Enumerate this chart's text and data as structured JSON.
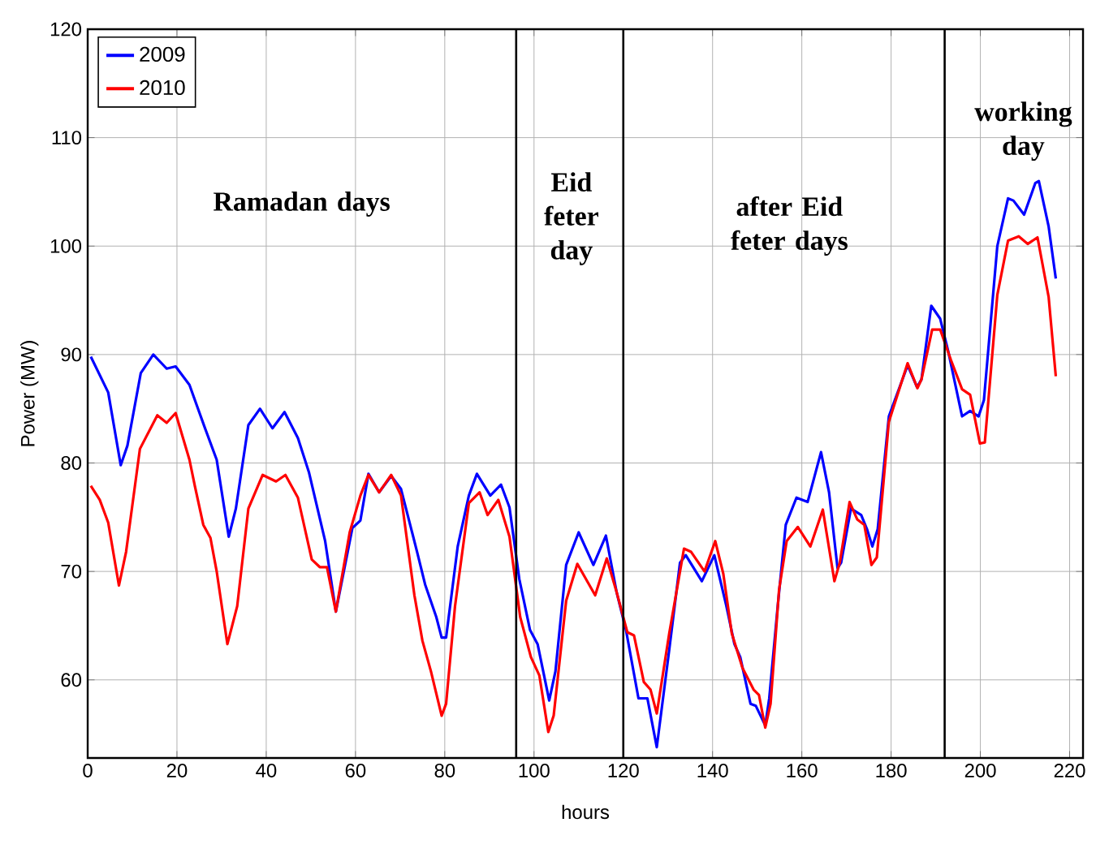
{
  "chart_data": {
    "type": "line",
    "xlabel": "hours",
    "ylabel": "Power (MW)",
    "xlim": [
      0,
      223
    ],
    "ylim": [
      52.8,
      120
    ],
    "xticks": [
      0,
      20,
      40,
      60,
      80,
      100,
      120,
      140,
      160,
      180,
      200,
      220
    ],
    "yticks": [
      60,
      70,
      80,
      90,
      100,
      110,
      120
    ],
    "grid": true,
    "legend": "top left",
    "line_style": "solid",
    "marker": "none",
    "series": [
      {
        "name": "2009",
        "color": "#0000ff",
        "x": [
          0.7,
          4.6,
          7.4,
          8.9,
          11.9,
          14.7,
          17.7,
          19.7,
          22.8,
          26.2,
          28.9,
          31.6,
          33.2,
          36,
          38.6,
          41.4,
          44.1,
          47.1,
          49.6,
          53.2,
          55.6,
          59.3,
          61.1,
          62.9,
          65.3,
          68,
          70.2,
          73.8,
          75.6,
          78.1,
          79.3,
          80.3,
          82.9,
          85.4,
          87.2,
          90.2,
          92.6,
          94.5,
          96.7,
          99.1,
          100.8,
          103.4,
          104.8,
          107.2,
          110,
          113.3,
          116.1,
          118.5,
          120.6,
          123.4,
          125.4,
          127.5,
          130.3,
          132.7,
          134,
          137.6,
          140.4,
          143.1,
          144.9,
          146.2,
          148.5,
          149.7,
          151.8,
          152.7,
          154.6,
          156.4,
          158.8,
          161.3,
          164.3,
          166.1,
          168,
          168.8,
          171,
          173.3,
          174.6,
          175.8,
          177,
          179.5,
          183.7,
          185.8,
          186.8,
          189,
          191,
          192.8,
          195.9,
          197.7,
          199.6,
          200.8,
          203.8,
          206.2,
          207.4,
          209.8,
          212.3,
          213.1,
          215.3,
          216.9
        ],
        "values": [
          89.8,
          86.5,
          79.8,
          81.6,
          88.3,
          90.0,
          88.7,
          88.9,
          87.2,
          83.3,
          80.3,
          73.2,
          75.8,
          83.5,
          85.0,
          83.2,
          84.7,
          82.3,
          79.1,
          72.8,
          66.3,
          74.0,
          74.7,
          79.0,
          77.3,
          78.8,
          77.6,
          71.8,
          68.8,
          65.8,
          63.9,
          63.9,
          72.3,
          77.0,
          79.0,
          77.0,
          78.0,
          75.9,
          69.3,
          64.6,
          63.3,
          58.1,
          60.8,
          70.6,
          73.6,
          70.6,
          73.3,
          68.1,
          64.6,
          58.3,
          58.3,
          53.8,
          62.8,
          70.8,
          71.5,
          69.1,
          71.5,
          66.8,
          63.3,
          62.1,
          57.8,
          57.6,
          55.8,
          58.3,
          66.8,
          74.3,
          76.8,
          76.4,
          81.0,
          77.3,
          70.3,
          70.8,
          75.8,
          75.2,
          73.9,
          72.3,
          73.9,
          84.3,
          89.0,
          87.0,
          87.7,
          94.5,
          93.3,
          90.3,
          84.3,
          84.8,
          84.3,
          85.8,
          100.0,
          104.4,
          104.2,
          102.9,
          105.8,
          106.0,
          101.8,
          97.0
        ]
      },
      {
        "name": "2010",
        "color": "#ff0000",
        "x": [
          0.7,
          2.7,
          4.6,
          7,
          8.6,
          11.7,
          15.6,
          17.7,
          19.7,
          22.8,
          24,
          25.9,
          27.5,
          28.9,
          31.3,
          33.5,
          36,
          39.2,
          42.2,
          44.3,
          47.1,
          50.2,
          52,
          53.6,
          55.6,
          58.7,
          61.1,
          62.9,
          65.3,
          68,
          70.2,
          73.2,
          75,
          76.9,
          79.3,
          80.3,
          82.3,
          85.4,
          87.8,
          89.6,
          92,
          94.5,
          96.9,
          99.3,
          101.2,
          103.2,
          104.4,
          107.2,
          109.7,
          113.7,
          116.3,
          118.5,
          120.9,
          122.4,
          124.6,
          126.1,
          127.5,
          130.3,
          133.6,
          135.2,
          138.2,
          140.6,
          142.4,
          144.3,
          146.7,
          149.2,
          150.4,
          151.8,
          153,
          154.9,
          156.6,
          159.1,
          161.9,
          164.7,
          167.3,
          168.5,
          170.7,
          172.4,
          174,
          175.6,
          176.8,
          179.5,
          183.7,
          185.9,
          186.8,
          189.2,
          191,
          193.4,
          195.9,
          197.7,
          199.9,
          201,
          203.8,
          206.2,
          208.6,
          210.6,
          212.8,
          215.3,
          216.9
        ],
        "values": [
          77.9,
          76.6,
          74.5,
          68.7,
          71.8,
          81.3,
          84.4,
          83.7,
          84.6,
          80.3,
          77.9,
          74.3,
          73.1,
          70.0,
          63.3,
          66.8,
          75.8,
          78.9,
          78.3,
          78.9,
          76.8,
          71.1,
          70.4,
          70.4,
          66.3,
          73.6,
          77.0,
          78.9,
          77.3,
          78.9,
          77.0,
          67.8,
          63.6,
          60.8,
          56.7,
          57.8,
          66.8,
          76.3,
          77.3,
          75.2,
          76.6,
          73.2,
          65.8,
          62.1,
          60.4,
          55.2,
          56.7,
          67.3,
          70.7,
          67.8,
          71.2,
          68.1,
          64.4,
          64.1,
          59.8,
          59.1,
          56.9,
          64.3,
          72.1,
          71.8,
          70.0,
          72.8,
          69.8,
          64.3,
          61.1,
          59.1,
          58.6,
          55.6,
          57.8,
          68.3,
          72.8,
          74.1,
          72.3,
          75.7,
          69.1,
          70.8,
          76.4,
          74.8,
          74.3,
          70.6,
          71.3,
          83.8,
          89.2,
          86.9,
          87.7,
          92.3,
          92.3,
          89.5,
          86.8,
          86.3,
          81.8,
          81.9,
          95.5,
          100.5,
          100.9,
          100.2,
          100.8,
          95.3,
          88.0
        ]
      }
    ],
    "ref_lines": [
      {
        "axis": "x",
        "value": 96,
        "color": "#000000"
      },
      {
        "axis": "x",
        "value": 120,
        "color": "#000000"
      },
      {
        "axis": "x",
        "value": 192,
        "color": "#000000"
      }
    ],
    "annotations": [
      "Ramadan days",
      "Eid feter day",
      "after Eid feter days",
      "working day"
    ]
  }
}
